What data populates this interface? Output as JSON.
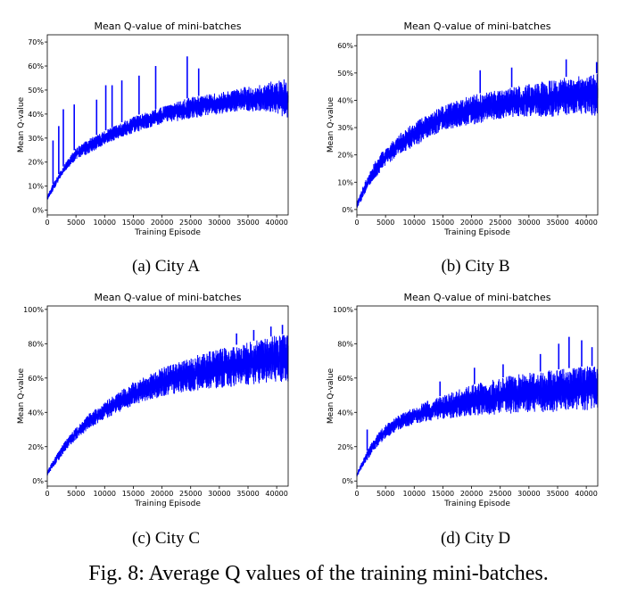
{
  "figure": {
    "caption": "Fig. 8: Average Q values of the training mini-batches."
  },
  "chart_data": [
    {
      "type": "line",
      "panel": "a",
      "subcaption": "(a) City A",
      "title": "Mean Q-value of mini-batches",
      "xlabel": "Training Episode",
      "ylabel": "Mean Q-value",
      "xlim": [
        0,
        42000
      ],
      "ylim": [
        -0.02,
        0.73
      ],
      "xticks": [
        0,
        5000,
        10000,
        15000,
        20000,
        25000,
        30000,
        35000,
        40000
      ],
      "yticks": [
        0,
        0.1,
        0.2,
        0.3,
        0.4,
        0.5,
        0.6,
        0.7
      ],
      "ytick_labels": [
        "0%",
        "10%",
        "20%",
        "30%",
        "40%",
        "50%",
        "60%",
        "70%"
      ],
      "color": "#0000ff",
      "series": [
        {
          "x": [
            0,
            1000,
            2000,
            3000,
            5000,
            7500,
            10000,
            12500,
            15000,
            17500,
            20000,
            22500,
            25000,
            27500,
            30000,
            32500,
            35000,
            37500,
            40000,
            42000
          ],
          "lower": [
            0.04,
            0.08,
            0.12,
            0.16,
            0.21,
            0.24,
            0.27,
            0.3,
            0.32,
            0.34,
            0.36,
            0.37,
            0.38,
            0.39,
            0.4,
            0.41,
            0.41,
            0.41,
            0.4,
            0.38
          ],
          "upper": [
            0.06,
            0.11,
            0.15,
            0.19,
            0.26,
            0.3,
            0.33,
            0.36,
            0.39,
            0.41,
            0.43,
            0.45,
            0.47,
            0.48,
            0.49,
            0.5,
            0.52,
            0.53,
            0.54,
            0.55
          ]
        }
      ],
      "spikes": [
        [
          1000,
          0.29
        ],
        [
          2000,
          0.35
        ],
        [
          2800,
          0.42
        ],
        [
          4700,
          0.44
        ],
        [
          8600,
          0.46
        ],
        [
          10200,
          0.52
        ],
        [
          11300,
          0.52
        ],
        [
          13000,
          0.54
        ],
        [
          16000,
          0.56
        ],
        [
          18900,
          0.6
        ],
        [
          24400,
          0.64
        ],
        [
          26400,
          0.59
        ]
      ]
    },
    {
      "type": "line",
      "panel": "b",
      "subcaption": "(b) City B",
      "title": "Mean Q-value of mini-batches",
      "xlabel": "Training Episode",
      "ylabel": "Mean Q-value",
      "xlim": [
        0,
        42000
      ],
      "ylim": [
        -0.02,
        0.64
      ],
      "xticks": [
        0,
        5000,
        10000,
        15000,
        20000,
        25000,
        30000,
        35000,
        40000
      ],
      "yticks": [
        0,
        0.1,
        0.2,
        0.3,
        0.4,
        0.5,
        0.6
      ],
      "ytick_labels": [
        "0%",
        "10%",
        "20%",
        "30%",
        "40%",
        "50%",
        "60%"
      ],
      "color": "#0000ff",
      "series": [
        {
          "x": [
            0,
            1000,
            2000,
            3000,
            5000,
            7500,
            10000,
            12500,
            15000,
            17500,
            20000,
            22500,
            25000,
            27500,
            30000,
            32500,
            35000,
            37500,
            40000,
            42000
          ],
          "lower": [
            0.0,
            0.04,
            0.08,
            0.11,
            0.16,
            0.2,
            0.23,
            0.26,
            0.29,
            0.3,
            0.31,
            0.32,
            0.33,
            0.34,
            0.34,
            0.34,
            0.34,
            0.35,
            0.35,
            0.34
          ],
          "upper": [
            0.03,
            0.08,
            0.13,
            0.17,
            0.23,
            0.28,
            0.32,
            0.35,
            0.38,
            0.4,
            0.42,
            0.43,
            0.44,
            0.45,
            0.46,
            0.47,
            0.48,
            0.49,
            0.49,
            0.5
          ]
        }
      ],
      "spikes": [
        [
          21500,
          0.51
        ],
        [
          27000,
          0.52
        ],
        [
          36500,
          0.55
        ],
        [
          41800,
          0.54
        ]
      ]
    },
    {
      "type": "line",
      "panel": "c",
      "subcaption": "(c) City C",
      "title": "Mean Q-value of mini-batches",
      "xlabel": "Training Episode",
      "ylabel": "Mean Q-value",
      "xlim": [
        0,
        42000
      ],
      "ylim": [
        -0.03,
        1.02
      ],
      "xticks": [
        0,
        5000,
        10000,
        15000,
        20000,
        25000,
        30000,
        35000,
        40000
      ],
      "yticks": [
        0,
        0.2,
        0.4,
        0.6,
        0.8,
        1.0
      ],
      "ytick_labels": [
        "0%",
        "20%",
        "40%",
        "60%",
        "80%",
        "100%"
      ],
      "color": "#0000ff",
      "series": [
        {
          "x": [
            0,
            1000,
            2000,
            3000,
            5000,
            7500,
            10000,
            12500,
            15000,
            17500,
            20000,
            22500,
            25000,
            27500,
            30000,
            32500,
            35000,
            37500,
            40000,
            42000
          ],
          "lower": [
            0.03,
            0.08,
            0.12,
            0.17,
            0.24,
            0.31,
            0.36,
            0.4,
            0.44,
            0.47,
            0.49,
            0.51,
            0.52,
            0.53,
            0.54,
            0.55,
            0.56,
            0.57,
            0.57,
            0.58
          ],
          "upper": [
            0.06,
            0.12,
            0.18,
            0.23,
            0.31,
            0.4,
            0.46,
            0.52,
            0.58,
            0.62,
            0.66,
            0.69,
            0.72,
            0.75,
            0.77,
            0.79,
            0.81,
            0.83,
            0.85,
            0.86
          ]
        }
      ],
      "spikes": [
        [
          33000,
          0.86
        ],
        [
          36000,
          0.88
        ],
        [
          39000,
          0.9
        ],
        [
          41000,
          0.91
        ]
      ]
    },
    {
      "type": "line",
      "panel": "d",
      "subcaption": "(d) City D",
      "title": "Mean Q-value of mini-batches",
      "xlabel": "Training Episode",
      "ylabel": "Mean Q-value",
      "xlim": [
        0,
        42000
      ],
      "ylim": [
        -0.03,
        1.02
      ],
      "xticks": [
        0,
        5000,
        10000,
        15000,
        20000,
        25000,
        30000,
        35000,
        40000
      ],
      "yticks": [
        0,
        0.2,
        0.4,
        0.6,
        0.8,
        1.0
      ],
      "ytick_labels": [
        "0%",
        "20%",
        "40%",
        "60%",
        "80%",
        "100%"
      ],
      "color": "#0000ff",
      "series": [
        {
          "x": [
            0,
            1000,
            2000,
            3000,
            5000,
            7500,
            10000,
            12500,
            15000,
            17500,
            20000,
            22500,
            25000,
            27500,
            30000,
            32500,
            35000,
            37500,
            40000,
            42000
          ],
          "lower": [
            0.02,
            0.08,
            0.13,
            0.18,
            0.25,
            0.3,
            0.33,
            0.35,
            0.36,
            0.37,
            0.38,
            0.38,
            0.39,
            0.39,
            0.4,
            0.4,
            0.4,
            0.41,
            0.41,
            0.42
          ],
          "upper": [
            0.05,
            0.12,
            0.19,
            0.25,
            0.33,
            0.39,
            0.43,
            0.47,
            0.5,
            0.53,
            0.56,
            0.58,
            0.6,
            0.62,
            0.63,
            0.64,
            0.65,
            0.66,
            0.67,
            0.67
          ]
        }
      ],
      "spikes": [
        [
          1800,
          0.3
        ],
        [
          14500,
          0.58
        ],
        [
          20500,
          0.66
        ],
        [
          25500,
          0.68
        ],
        [
          32000,
          0.74
        ],
        [
          35200,
          0.8
        ],
        [
          37000,
          0.84
        ],
        [
          39200,
          0.82
        ],
        [
          41000,
          0.78
        ]
      ]
    }
  ]
}
